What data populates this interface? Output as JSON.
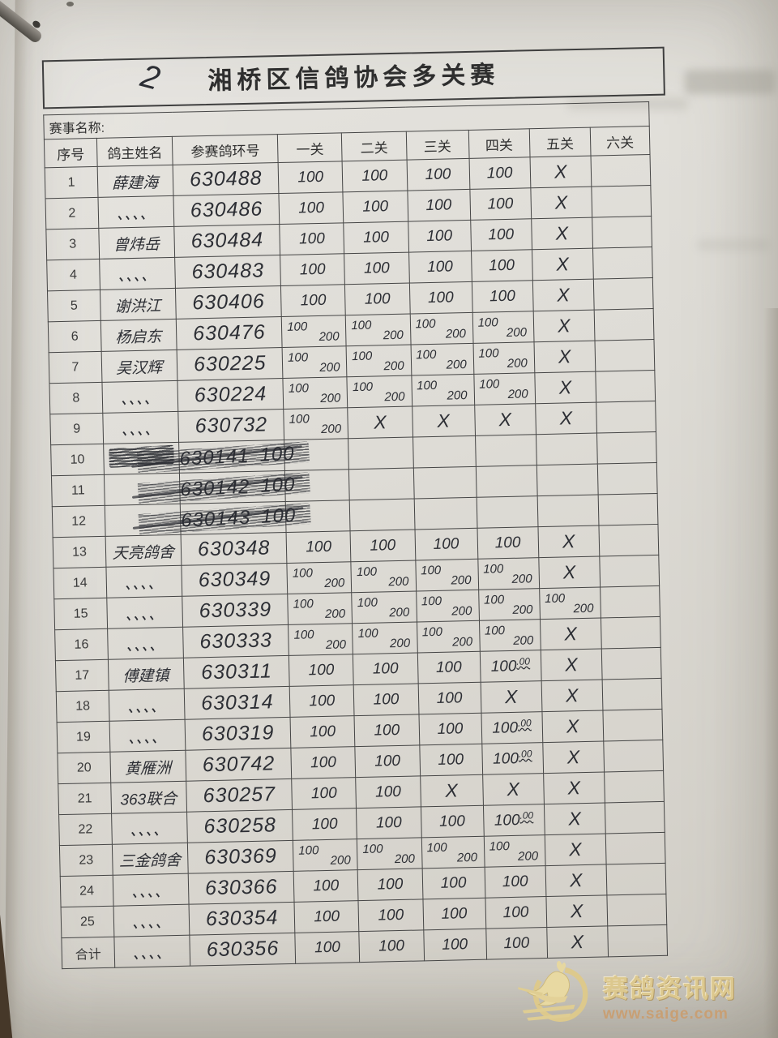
{
  "title": {
    "text": "湘桥区信鸽协会多关赛",
    "hand_mark": "2"
  },
  "event_name_label": "赛事名称:",
  "table": {
    "headers": [
      "序号",
      "鸽主姓名",
      "参赛鸽环号",
      "一关",
      "二关",
      "三关",
      "四关",
      "五关",
      "六关"
    ],
    "rows": [
      {
        "num": "1",
        "name": "薛建海",
        "ring": "630488",
        "passes": [
          "100",
          "100",
          "100",
          "100",
          "X",
          ""
        ]
      },
      {
        "num": "2",
        "name": "、、、、",
        "ring": "630486",
        "passes": [
          "100",
          "100",
          "100",
          "100",
          "X",
          ""
        ]
      },
      {
        "num": "3",
        "name": "曾炜岳",
        "ring": "630484",
        "passes": [
          "100",
          "100",
          "100",
          "100",
          "X",
          ""
        ]
      },
      {
        "num": "4",
        "name": "、、、、",
        "ring": "630483",
        "passes": [
          "100",
          "100",
          "100",
          "100",
          "X",
          ""
        ]
      },
      {
        "num": "5",
        "name": "谢洪江",
        "ring": "630406",
        "passes": [
          "100",
          "100",
          "100",
          "100",
          "X",
          ""
        ]
      },
      {
        "num": "6",
        "name": "杨启东",
        "ring": "630476",
        "passes": [
          "100|200",
          "100|200",
          "100|200",
          "100|200",
          "X",
          ""
        ]
      },
      {
        "num": "7",
        "name": "吴汉辉",
        "ring": "630225",
        "passes": [
          "100|200",
          "100|200",
          "100|200",
          "100|200",
          "X",
          ""
        ]
      },
      {
        "num": "8",
        "name": "、、、、",
        "ring": "630224",
        "passes": [
          "100|200",
          "100|200",
          "100|200",
          "100|200",
          "X",
          ""
        ]
      },
      {
        "num": "9",
        "name": "、、、、",
        "ring": "630732",
        "passes": [
          "100|200",
          "X",
          "X",
          "X",
          "X",
          ""
        ]
      },
      {
        "num": "10",
        "name": "",
        "ring": "630141",
        "extra": "100",
        "struck": true,
        "blob": true,
        "passes": [
          "",
          "",
          "",
          "",
          "",
          ""
        ]
      },
      {
        "num": "11",
        "name": "",
        "ring": "630142",
        "extra": "100",
        "struck": true,
        "passes": [
          "",
          "",
          "",
          "",
          "",
          ""
        ]
      },
      {
        "num": "12",
        "name": "",
        "ring": "630143",
        "extra": "100",
        "struck": true,
        "passes": [
          "",
          "",
          "",
          "",
          "",
          ""
        ]
      },
      {
        "num": "13",
        "name": "天亮鸽舍",
        "ring": "630348",
        "passes": [
          "100",
          "100",
          "100",
          "100",
          "X",
          ""
        ]
      },
      {
        "num": "14",
        "name": "、、、、",
        "ring": "630349",
        "passes": [
          "100|200",
          "100|200",
          "100|200",
          "100|200",
          "X",
          ""
        ]
      },
      {
        "num": "15",
        "name": "、、、、",
        "ring": "630339",
        "passes": [
          "100|200",
          "100|200",
          "100|200",
          "100|200",
          "100|200",
          ""
        ]
      },
      {
        "num": "16",
        "name": "、、、、",
        "ring": "630333",
        "passes": [
          "100|200",
          "100|200",
          "100|200",
          "100|200",
          "X",
          ""
        ]
      },
      {
        "num": "17",
        "name": "傅建镇",
        "ring": "630311",
        "passes": [
          "100",
          "100",
          "100",
          "100.00",
          "X",
          ""
        ]
      },
      {
        "num": "18",
        "name": "、、、、",
        "ring": "630314",
        "passes": [
          "100",
          "100",
          "100",
          "X",
          "X",
          ""
        ]
      },
      {
        "num": "19",
        "name": "、、、、",
        "ring": "630319",
        "passes": [
          "100",
          "100",
          "100",
          "100.00",
          "X",
          ""
        ]
      },
      {
        "num": "20",
        "name": "黄雁洲",
        "ring": "630742",
        "passes": [
          "100",
          "100",
          "100",
          "100.00",
          "X",
          ""
        ]
      },
      {
        "num": "21",
        "name": "363联合",
        "ring": "630257",
        "passes": [
          "100",
          "100",
          "X",
          "X",
          "X",
          ""
        ]
      },
      {
        "num": "22",
        "name": "、、、、",
        "ring": "630258",
        "passes": [
          "100",
          "100",
          "100",
          "100.00",
          "X",
          ""
        ]
      },
      {
        "num": "23",
        "name": "三金鸽舍",
        "ring": "630369",
        "passes": [
          "100|200",
          "100|200",
          "100|200",
          "100|200",
          "X",
          ""
        ]
      },
      {
        "num": "24",
        "name": "、、、、",
        "ring": "630366",
        "passes": [
          "100",
          "100",
          "100",
          "100",
          "X",
          ""
        ]
      },
      {
        "num": "25",
        "name": "、、、、",
        "ring": "630354",
        "passes": [
          "100",
          "100",
          "100",
          "100",
          "X",
          ""
        ]
      },
      {
        "num": "合计",
        "name": "、、、、",
        "ring": "630356",
        "passes": [
          "100",
          "100",
          "100",
          "100",
          "X",
          ""
        ]
      }
    ]
  },
  "watermark": {
    "site_name": "赛鸽资讯网",
    "url": "www.saige.com",
    "icon": "pigeon-logo-icon",
    "name_color": "#dcc88e",
    "url_color": "#c89f74"
  }
}
